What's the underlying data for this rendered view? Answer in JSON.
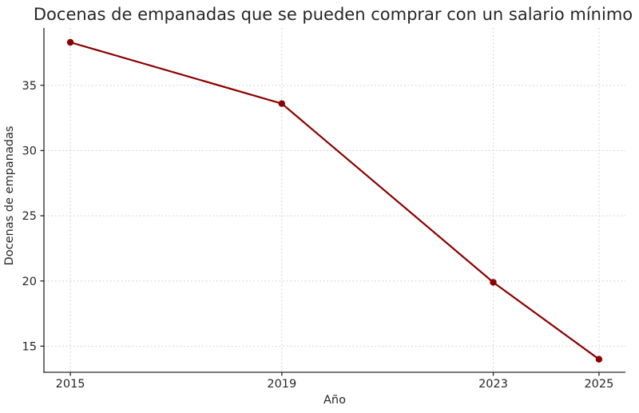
{
  "chart_data": {
    "type": "line",
    "title": "Docenas de empanadas que se pueden comprar con un salario mínimo",
    "xlabel": "Año",
    "ylabel": "Docenas de empanadas",
    "x": [
      2015,
      2019,
      2023,
      2025
    ],
    "series": [
      {
        "name": "Docenas de empanadas",
        "values": [
          38.3,
          33.6,
          19.9,
          14.0
        ]
      }
    ],
    "xlim": [
      2014.5,
      2025.5
    ],
    "ylim": [
      13,
      39.4
    ],
    "xticks": [
      2015,
      2019,
      2023,
      2025
    ],
    "yticks": [
      15,
      20,
      25,
      30,
      35
    ],
    "grid": true,
    "legend_position": "none",
    "marker": "circle",
    "colors": {
      "line": "#8B0000",
      "marker": "#8B0000",
      "grid": "#d4d4d4",
      "axis": "#262626",
      "text": "#262626",
      "background": "#ffffff"
    }
  }
}
